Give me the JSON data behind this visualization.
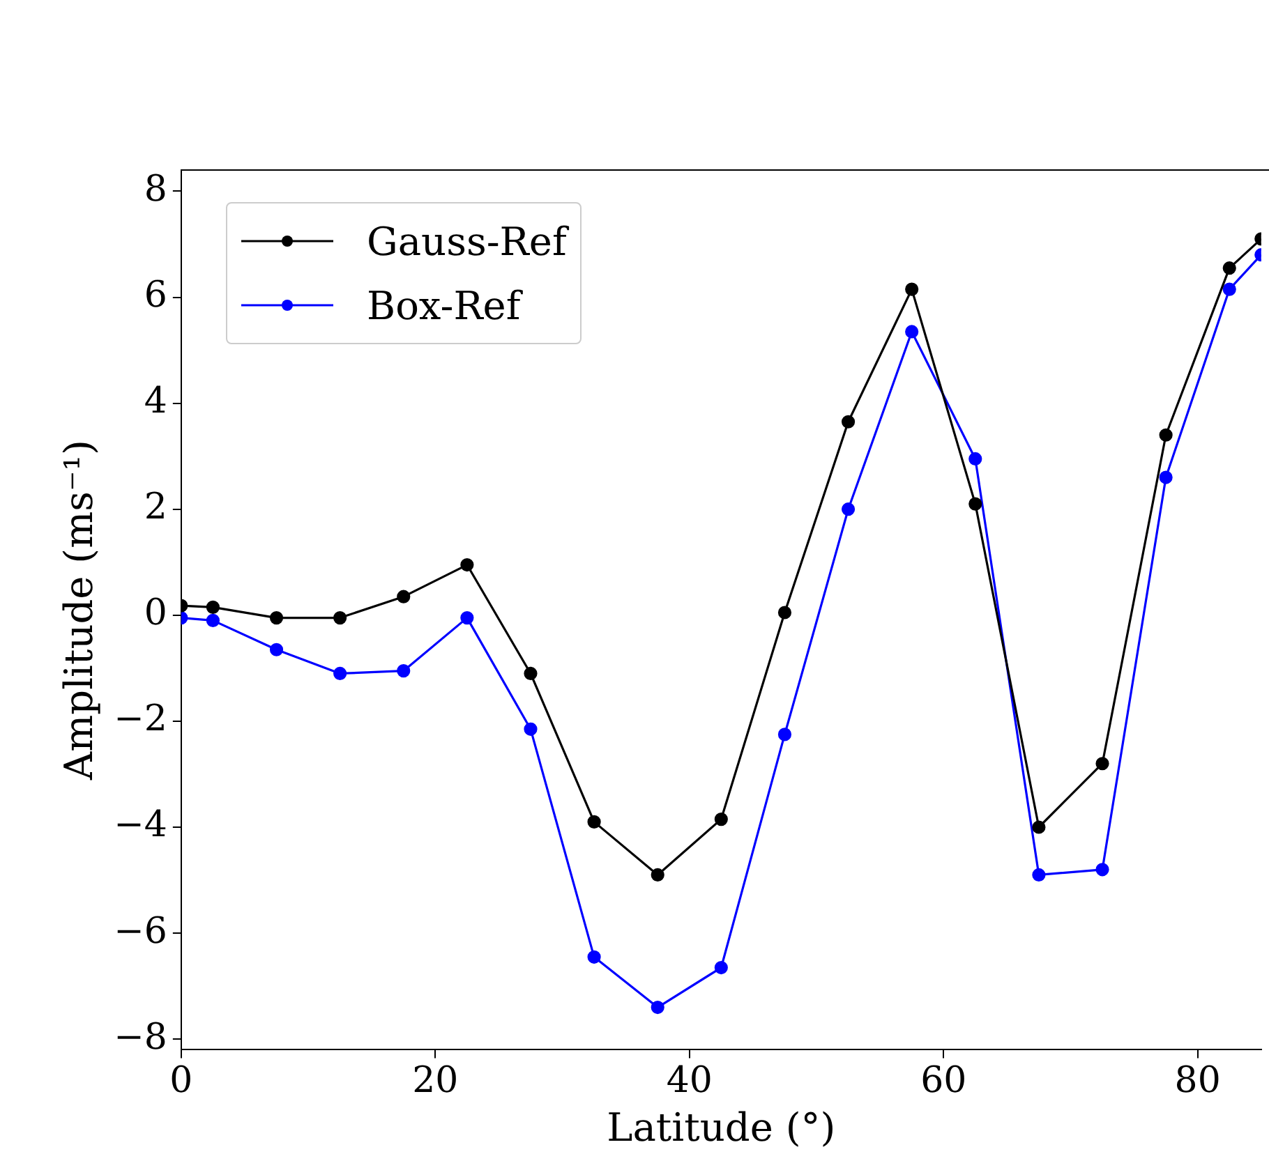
{
  "chart_data": {
    "type": "line",
    "xlabel": "Latitude (°)",
    "ylabel": "Amplitude (ms⁻¹)",
    "x": [
      0,
      2.5,
      7.5,
      12.5,
      17.5,
      22.5,
      27.5,
      32.5,
      37.5,
      42.5,
      47.5,
      52.5,
      57.5,
      62.5,
      67.5,
      72.5,
      77.5,
      82.5,
      85
    ],
    "series": [
      {
        "name": "Gauss-Ref",
        "color": "#000000",
        "values": [
          0.18,
          0.15,
          -0.05,
          -0.05,
          0.35,
          0.95,
          -1.1,
          -3.9,
          -4.9,
          -3.85,
          0.05,
          3.65,
          6.15,
          2.1,
          -4.0,
          -2.8,
          3.4,
          6.55,
          7.1
        ]
      },
      {
        "name": "Box-Ref",
        "color": "#0000ff",
        "values": [
          -0.05,
          -0.1,
          -0.65,
          -1.1,
          -1.05,
          -0.05,
          -2.15,
          -6.45,
          -7.4,
          -6.65,
          -2.25,
          2.0,
          5.35,
          2.95,
          -4.9,
          -4.8,
          2.6,
          6.15,
          6.8
        ]
      }
    ],
    "xlim": [
      0,
      85
    ],
    "xticks": [
      0,
      20,
      40,
      60,
      80
    ],
    "ylim": [
      -8.2,
      8.4
    ],
    "yticks": [
      {
        "value": -8,
        "label": "−8"
      },
      {
        "value": -6,
        "label": "−6"
      },
      {
        "value": -4,
        "label": "−4"
      },
      {
        "value": -2,
        "label": "−2"
      },
      0,
      2,
      4,
      6,
      8
    ],
    "grid": false,
    "legend": "top left",
    "marker": "circle",
    "line_style": "solid"
  }
}
